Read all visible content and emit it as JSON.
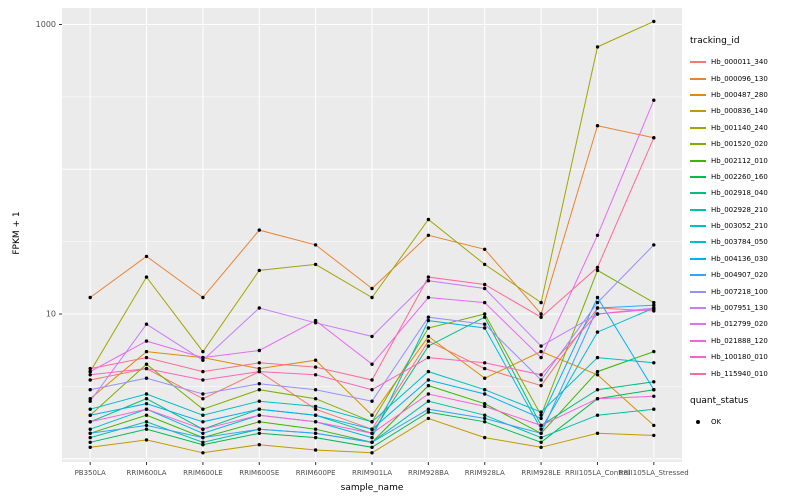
{
  "chart_data": {
    "type": "line",
    "title": "",
    "xlabel": "sample_name",
    "ylabel": "FPKM + 1",
    "scale": "log10",
    "ylim": [
      0.95,
      1300
    ],
    "y_ticks": [
      {
        "value": 10,
        "label": "10"
      },
      {
        "value": 1000,
        "label": "1000"
      }
    ],
    "major_gridlines": [
      1,
      10,
      100,
      1000
    ],
    "minor_gridlines": [
      3.162,
      31.62,
      316.2
    ],
    "categories": [
      "PB350LA",
      "RRIM600LA",
      "RRIM600LE",
      "RRIM600SE",
      "RRIM600PE",
      "RRIM901LA",
      "RRIM928BA",
      "RRIM928LA",
      "RRIM928LE",
      "RRII105LA_Control",
      "RRII105LA_Stressed"
    ],
    "legend_title": "tracking_id",
    "quant_legend_title": "quant_status",
    "quant_status_label": "OK",
    "panel_color": "#EBEBEB",
    "gridline_color": "#FFFFFF",
    "point_color": "#000000",
    "axis_text_color": "#4D4D4D",
    "legend_position": "right",
    "series": [
      {
        "name": "Hb_000011_340",
        "color": "#F8766D",
        "values": [
          3.5,
          4.2,
          2.6,
          4.0,
          2.2,
          1.6,
          6.5,
          4.2,
          3.2,
          11,
          10.5
        ]
      },
      {
        "name": "Hb_000096_130",
        "color": "#EA8331",
        "values": [
          13,
          25,
          13,
          38,
          30,
          15,
          35,
          28,
          10,
          200,
          165
        ]
      },
      {
        "name": "Hb_000487_280",
        "color": "#D89000",
        "values": [
          2.6,
          5.5,
          5.0,
          4.2,
          4.8,
          2.0,
          7.0,
          3.6,
          5.5,
          3.8,
          1.7
        ]
      },
      {
        "name": "Hb_000836_140",
        "color": "#C09B00",
        "values": [
          1.2,
          1.35,
          1.1,
          1.25,
          1.15,
          1.1,
          1.9,
          1.4,
          1.2,
          1.5,
          1.45
        ]
      },
      {
        "name": "Hb_001140_240",
        "color": "#A3A500",
        "values": [
          4.0,
          18,
          5.5,
          20,
          22,
          13,
          45,
          22,
          12,
          700,
          1050
        ]
      },
      {
        "name": "Hb_001520_020",
        "color": "#7CAE00",
        "values": [
          2.0,
          4.5,
          2.2,
          3.0,
          2.6,
          1.8,
          8.0,
          10,
          2.0,
          20,
          12
        ]
      },
      {
        "name": "Hb_002112_010",
        "color": "#39B600",
        "values": [
          1.5,
          2.0,
          1.4,
          1.8,
          1.6,
          1.3,
          3.2,
          2.4,
          1.5,
          4.0,
          5.5
        ]
      },
      {
        "name": "Hb_002260_160",
        "color": "#00BB4E",
        "values": [
          1.3,
          1.6,
          1.25,
          1.5,
          1.4,
          1.2,
          2.1,
          1.8,
          1.3,
          2.6,
          3.0
        ]
      },
      {
        "name": "Hb_002918_040",
        "color": "#00BF7D",
        "values": [
          1.8,
          2.6,
          1.6,
          2.2,
          2.0,
          1.5,
          6.0,
          9.5,
          1.7,
          3.0,
          3.4
        ]
      },
      {
        "name": "Hb_002928_210",
        "color": "#00C1A3",
        "values": [
          1.4,
          1.8,
          1.3,
          1.6,
          1.5,
          1.3,
          2.5,
          2.0,
          1.4,
          2.0,
          2.2
        ]
      },
      {
        "name": "Hb_003052_210",
        "color": "#00BFC4",
        "values": [
          2.2,
          2.8,
          2.0,
          2.5,
          2.3,
          1.8,
          4.0,
          3.0,
          2.1,
          5.0,
          4.6
        ]
      },
      {
        "name": "Hb_003784_050",
        "color": "#00BAE0",
        "values": [
          1.6,
          2.2,
          1.5,
          2.0,
          1.8,
          1.4,
          9.0,
          8.0,
          1.6,
          7.5,
          11
        ]
      },
      {
        "name": "Hb_004136_030",
        "color": "#00B0F6",
        "values": [
          2.0,
          2.4,
          1.8,
          2.2,
          2.0,
          1.6,
          3.5,
          2.8,
          1.9,
          13,
          3.0
        ]
      },
      {
        "name": "Hb_004907_020",
        "color": "#35A2FF",
        "values": [
          1.5,
          1.7,
          1.4,
          1.6,
          1.5,
          1.3,
          2.2,
          1.9,
          1.5,
          11,
          11.5
        ]
      },
      {
        "name": "Hb_007218_100",
        "color": "#9590FF",
        "values": [
          3.0,
          3.6,
          2.8,
          3.3,
          3.0,
          2.5,
          9.5,
          8.5,
          3.5,
          12,
          30
        ]
      },
      {
        "name": "Hb_007951_130",
        "color": "#C77CFF",
        "values": [
          2.5,
          8.5,
          4.8,
          11,
          8.7,
          7.0,
          17,
          15,
          6.0,
          10,
          11
        ]
      },
      {
        "name": "Hb_012799_020",
        "color": "#E76BF3",
        "values": [
          4.0,
          6.5,
          5.0,
          5.6,
          9.0,
          4.5,
          13,
          12,
          5.0,
          35,
          300
        ]
      },
      {
        "name": "Hb_021888_120",
        "color": "#FA62DB",
        "values": [
          1.8,
          2.2,
          1.6,
          2.0,
          1.8,
          1.5,
          2.8,
          2.3,
          1.7,
          2.6,
          2.7
        ]
      },
      {
        "name": "Hb_100180_010",
        "color": "#FF62BC",
        "values": [
          3.8,
          4.2,
          3.5,
          4.0,
          3.8,
          3.0,
          5.0,
          4.6,
          3.8,
          10,
          10.8
        ]
      },
      {
        "name": "Hb_115940_010",
        "color": "#FF6A98",
        "values": [
          4.2,
          5.0,
          4.0,
          4.6,
          4.3,
          3.5,
          18,
          16,
          9.5,
          21,
          165
        ]
      }
    ]
  }
}
